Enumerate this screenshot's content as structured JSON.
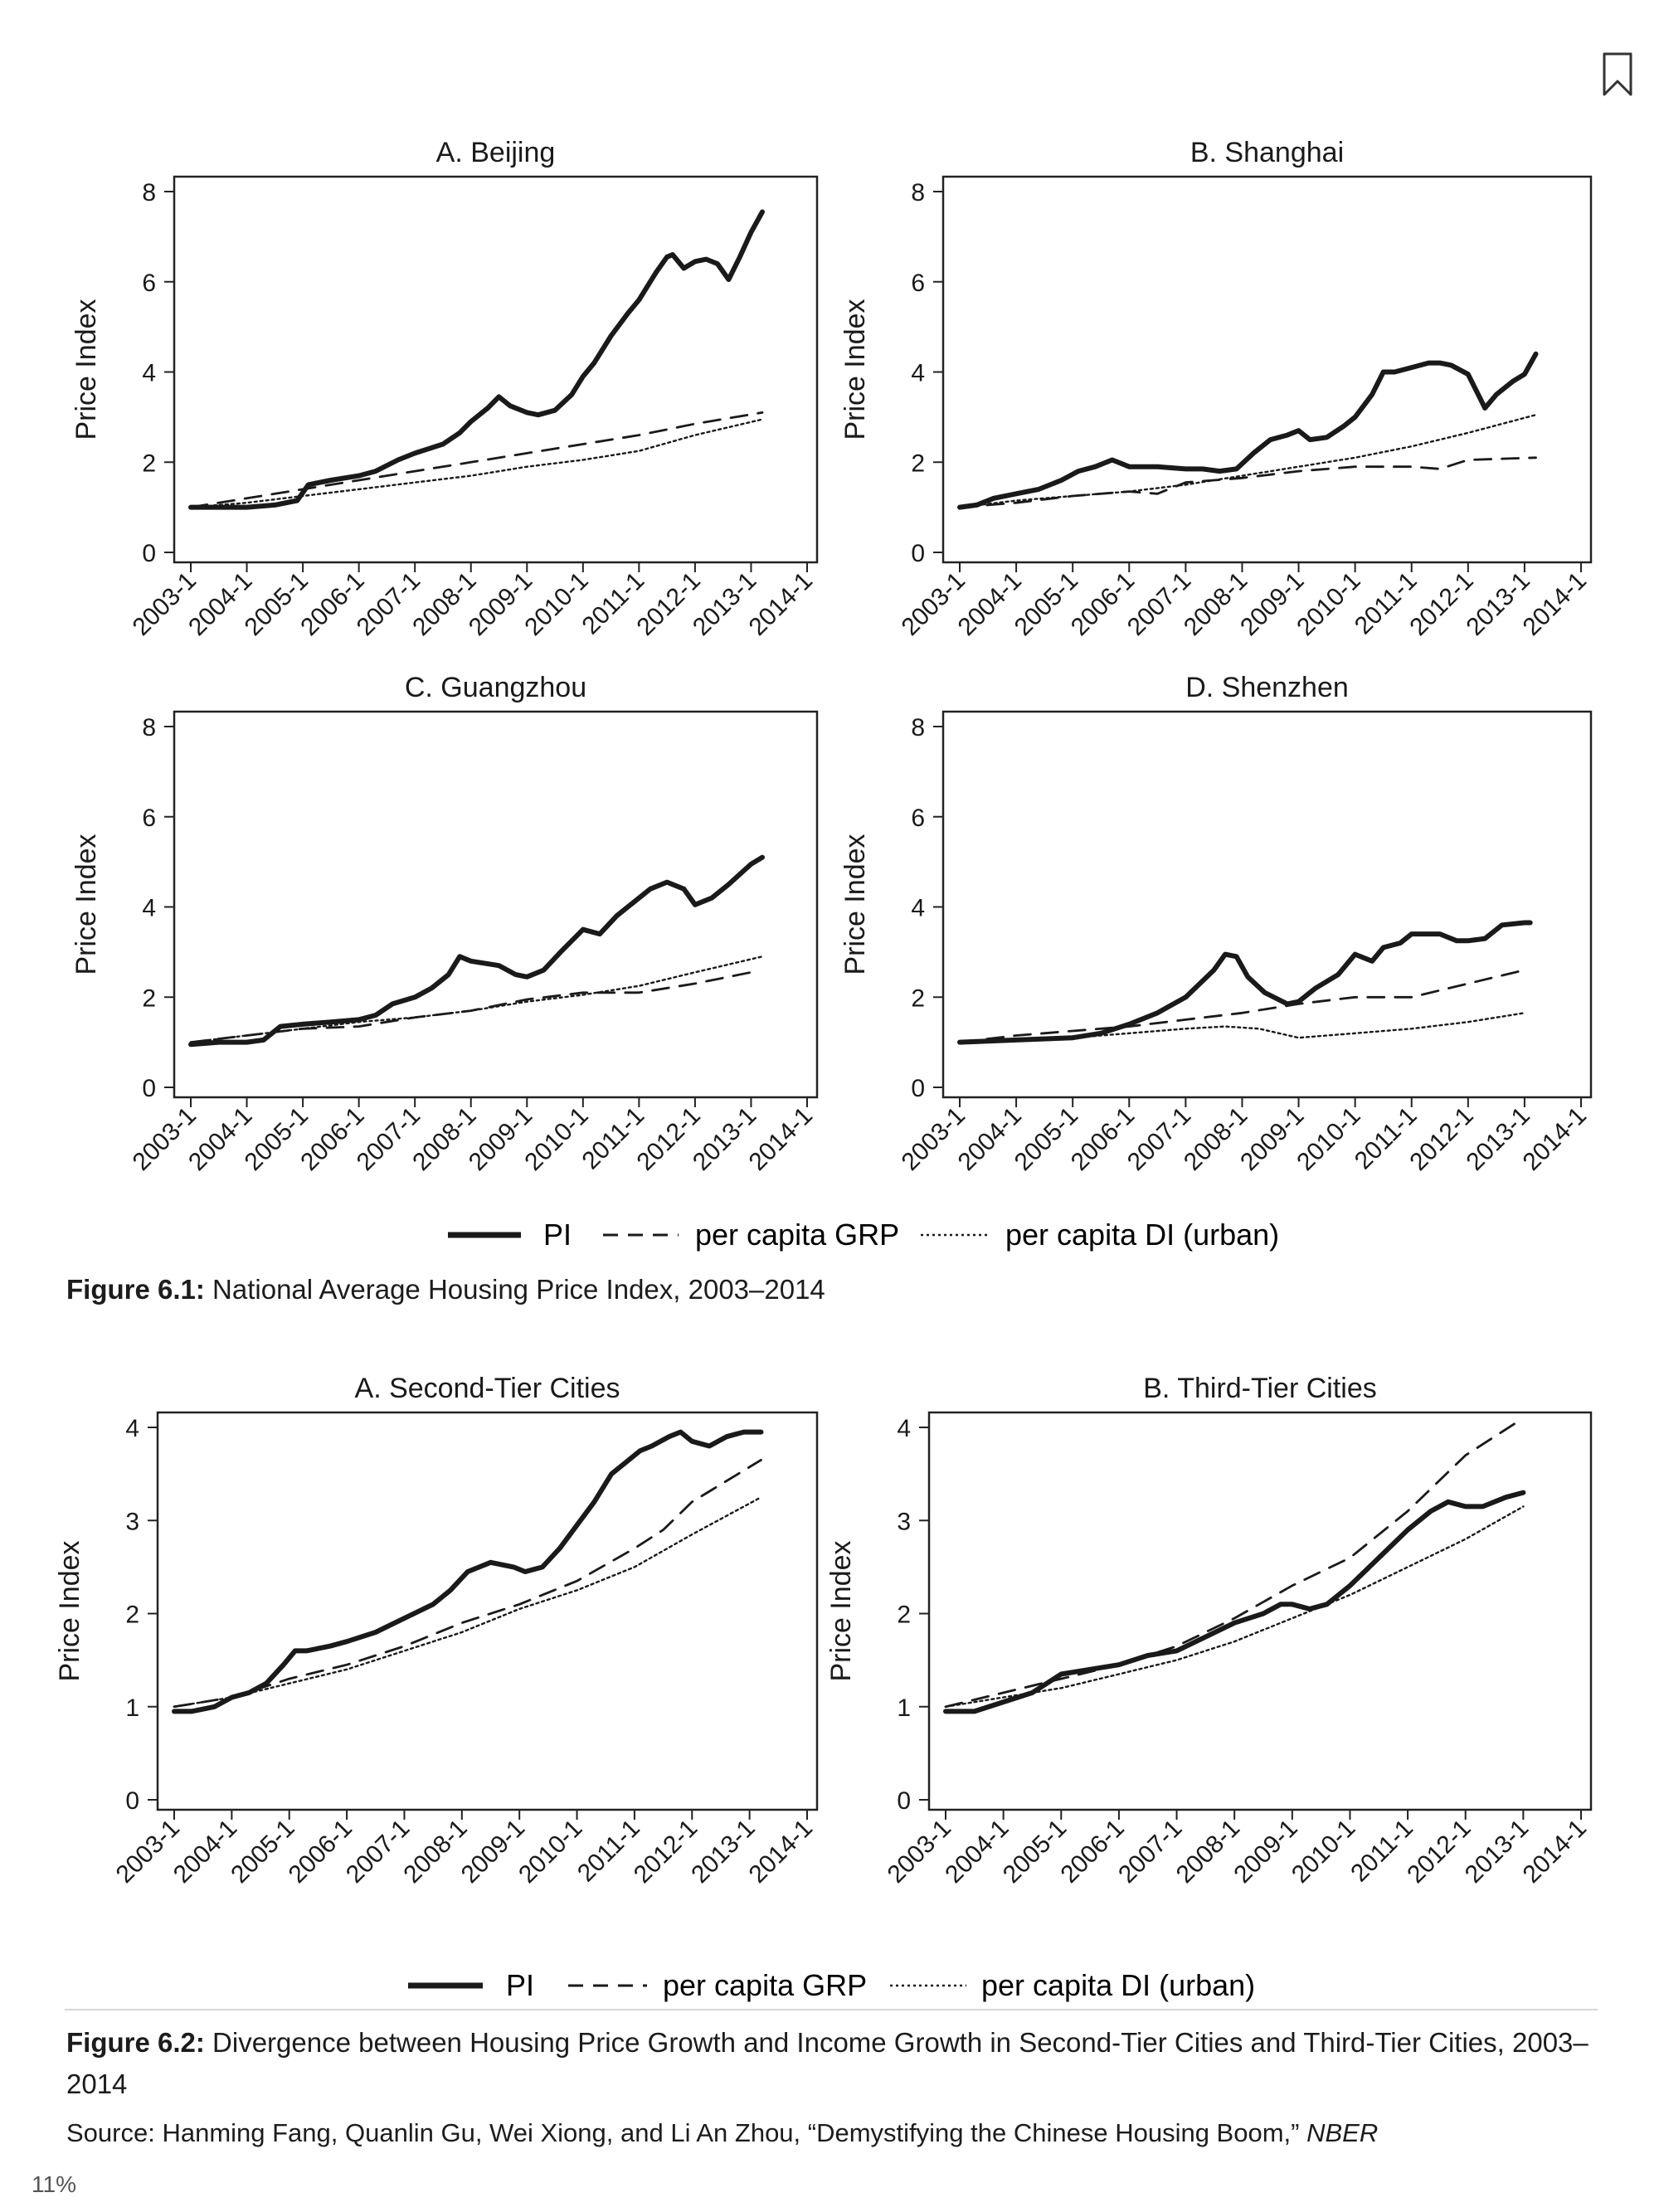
{
  "page": {
    "zoom_label": "11%"
  },
  "colors": {
    "ink": "#1a1a1a",
    "frame": "#222222",
    "bookmark": "#333333"
  },
  "icons": {
    "bookmark": "bookmark-icon"
  },
  "figure1": {
    "caption_label": "Figure 6.1:",
    "caption_text": " National Average Housing Price Index, 2003–2014",
    "legend": {
      "pi": "PI",
      "grp": "per capita GRP",
      "di": "per capita DI (urban)"
    }
  },
  "figure2": {
    "caption_label": "Figure 6.2:",
    "caption_text": " Divergence between Housing Price Growth and Income Growth in Second-Tier Cities and Third-Tier Cities, 2003–2014",
    "legend": {
      "pi": "PI",
      "grp": "per capita GRP",
      "di": "per capita DI (urban)"
    }
  },
  "source": {
    "text": "Source: Hanming Fang, Quanlin Gu, Wei Xiong, and Li An Zhou, “Demystifying the Chinese Housing Boom,” ",
    "publication": "NBER"
  },
  "chart_data": [
    {
      "id": "beijing",
      "type": "line",
      "title": "A. Beijing",
      "ylabel": "Price Index",
      "xlabel": "",
      "xticks": [
        "2003-1",
        "2004-1",
        "2005-1",
        "2006-1",
        "2007-1",
        "2008-1",
        "2009-1",
        "2010-1",
        "2011-1",
        "2012-1",
        "2013-1",
        "2014-1"
      ],
      "yticks": [
        0,
        2,
        4,
        6,
        8
      ],
      "ylim": [
        0,
        8
      ],
      "xlim": [
        2003,
        2014
      ],
      "grid": false,
      "series": [
        {
          "name": "PI",
          "style": "solid",
          "x": [
            2003.0,
            2003.5,
            2004.0,
            2004.5,
            2004.9,
            2005.1,
            2005.5,
            2006.0,
            2006.3,
            2006.7,
            2007.0,
            2007.5,
            2007.8,
            2008.0,
            2008.3,
            2008.5,
            2008.7,
            2009.0,
            2009.2,
            2009.5,
            2009.8,
            2010.0,
            2010.2,
            2010.5,
            2010.8,
            2011.0,
            2011.3,
            2011.5,
            2011.6,
            2011.8,
            2012.0,
            2012.2,
            2012.4,
            2012.6,
            2012.8,
            2013.0,
            2013.2
          ],
          "y": [
            1.0,
            1.0,
            1.0,
            1.05,
            1.15,
            1.5,
            1.6,
            1.7,
            1.8,
            2.05,
            2.2,
            2.4,
            2.65,
            2.9,
            3.2,
            3.45,
            3.25,
            3.1,
            3.05,
            3.15,
            3.5,
            3.9,
            4.2,
            4.8,
            5.3,
            5.6,
            6.2,
            6.55,
            6.6,
            6.3,
            6.45,
            6.5,
            6.4,
            6.05,
            6.55,
            7.1,
            7.55
          ]
        },
        {
          "name": "per capita GRP",
          "style": "dashed",
          "x": [
            2003.0,
            2004.0,
            2005.0,
            2006.0,
            2007.0,
            2008.0,
            2009.0,
            2010.0,
            2011.0,
            2012.0,
            2013.2
          ],
          "y": [
            1.0,
            1.2,
            1.4,
            1.6,
            1.8,
            2.0,
            2.2,
            2.4,
            2.6,
            2.85,
            3.1
          ]
        },
        {
          "name": "per capita DI (urban)",
          "style": "dotted",
          "x": [
            2003.0,
            2004.0,
            2005.0,
            2006.0,
            2007.0,
            2008.0,
            2009.0,
            2010.0,
            2011.0,
            2012.0,
            2013.2
          ],
          "y": [
            1.0,
            1.1,
            1.25,
            1.4,
            1.55,
            1.7,
            1.9,
            2.05,
            2.25,
            2.6,
            2.95
          ]
        }
      ]
    },
    {
      "id": "shanghai",
      "type": "line",
      "title": "B. Shanghai",
      "ylabel": "Price Index",
      "xlabel": "",
      "xticks": [
        "2003-1",
        "2004-1",
        "2005-1",
        "2006-1",
        "2007-1",
        "2008-1",
        "2009-1",
        "2010-1",
        "2011-1",
        "2012-1",
        "2013-1",
        "2014-1"
      ],
      "yticks": [
        0,
        2,
        4,
        6,
        8
      ],
      "ylim": [
        0,
        8
      ],
      "xlim": [
        2003,
        2014
      ],
      "grid": false,
      "series": [
        {
          "name": "PI",
          "style": "solid",
          "x": [
            2003.0,
            2003.3,
            2003.6,
            2004.0,
            2004.4,
            2004.8,
            2005.1,
            2005.4,
            2005.7,
            2006.0,
            2006.5,
            2007.0,
            2007.3,
            2007.6,
            2007.9,
            2008.2,
            2008.5,
            2008.8,
            2009.0,
            2009.2,
            2009.5,
            2009.8,
            2010.0,
            2010.3,
            2010.5,
            2010.7,
            2011.0,
            2011.3,
            2011.5,
            2011.7,
            2012.0,
            2012.1,
            2012.3,
            2012.5,
            2012.8,
            2013.0,
            2013.2
          ],
          "y": [
            1.0,
            1.05,
            1.2,
            1.3,
            1.4,
            1.6,
            1.8,
            1.9,
            2.05,
            1.9,
            1.9,
            1.85,
            1.85,
            1.8,
            1.85,
            2.2,
            2.5,
            2.6,
            2.7,
            2.5,
            2.55,
            2.8,
            3.0,
            3.5,
            4.0,
            4.0,
            4.1,
            4.2,
            4.2,
            4.15,
            3.95,
            3.7,
            3.2,
            3.5,
            3.8,
            3.95,
            4.4
          ]
        },
        {
          "name": "per capita GRP",
          "style": "dashed",
          "x": [
            2003.0,
            2003.5,
            2004.0,
            2005.0,
            2006.0,
            2006.5,
            2007.0,
            2007.5,
            2008.0,
            2009.0,
            2010.0,
            2011.0,
            2011.5,
            2012.0,
            2013.2
          ],
          "y": [
            1.0,
            1.05,
            1.1,
            1.25,
            1.35,
            1.3,
            1.55,
            1.6,
            1.65,
            1.8,
            1.9,
            1.9,
            1.85,
            2.05,
            2.1
          ]
        },
        {
          "name": "per capita DI (urban)",
          "style": "dotted",
          "x": [
            2003.0,
            2004.0,
            2005.0,
            2006.0,
            2007.0,
            2008.0,
            2009.0,
            2010.0,
            2011.0,
            2012.0,
            2013.2
          ],
          "y": [
            1.0,
            1.15,
            1.25,
            1.35,
            1.5,
            1.7,
            1.9,
            2.1,
            2.35,
            2.65,
            3.05
          ]
        }
      ]
    },
    {
      "id": "guangzhou",
      "type": "line",
      "title": "C. Guangzhou",
      "ylabel": "Price Index",
      "xlabel": "",
      "xticks": [
        "2003-1",
        "2004-1",
        "2005-1",
        "2006-1",
        "2007-1",
        "2008-1",
        "2009-1",
        "2010-1",
        "2011-1",
        "2012-1",
        "2013-1",
        "2014-1"
      ],
      "yticks": [
        0,
        2,
        4,
        6,
        8
      ],
      "ylim": [
        0,
        8
      ],
      "xlim": [
        2003,
        2014
      ],
      "grid": false,
      "series": [
        {
          "name": "PI",
          "style": "solid",
          "x": [
            2003.0,
            2003.5,
            2004.0,
            2004.3,
            2004.6,
            2005.0,
            2005.5,
            2006.0,
            2006.3,
            2006.6,
            2007.0,
            2007.3,
            2007.6,
            2007.8,
            2008.0,
            2008.5,
            2008.8,
            2009.0,
            2009.3,
            2009.6,
            2010.0,
            2010.3,
            2010.6,
            2010.9,
            2011.2,
            2011.5,
            2011.8,
            2012.0,
            2012.3,
            2012.6,
            2013.0,
            2013.2
          ],
          "y": [
            0.95,
            1.0,
            1.0,
            1.05,
            1.35,
            1.4,
            1.45,
            1.5,
            1.6,
            1.85,
            2.0,
            2.2,
            2.5,
            2.9,
            2.8,
            2.7,
            2.5,
            2.45,
            2.6,
            3.0,
            3.5,
            3.4,
            3.8,
            4.1,
            4.4,
            4.55,
            4.4,
            4.05,
            4.2,
            4.5,
            4.95,
            5.1
          ]
        },
        {
          "name": "per capita GRP",
          "style": "dashed",
          "x": [
            2003.0,
            2004.0,
            2005.0,
            2006.0,
            2007.0,
            2008.0,
            2009.0,
            2010.0,
            2011.0,
            2012.0,
            2013.0
          ],
          "y": [
            1.0,
            1.15,
            1.3,
            1.35,
            1.55,
            1.7,
            1.95,
            2.1,
            2.1,
            2.3,
            2.55
          ]
        },
        {
          "name": "per capita DI (urban)",
          "style": "dotted",
          "x": [
            2003.0,
            2004.0,
            2005.0,
            2006.0,
            2007.0,
            2008.0,
            2009.0,
            2010.0,
            2011.0,
            2012.0,
            2013.2
          ],
          "y": [
            1.0,
            1.15,
            1.3,
            1.45,
            1.55,
            1.7,
            1.9,
            2.05,
            2.25,
            2.55,
            2.9
          ]
        }
      ]
    },
    {
      "id": "shenzhen",
      "type": "line",
      "title": "D. Shenzhen",
      "ylabel": "Price Index",
      "xlabel": "",
      "xticks": [
        "2003-1",
        "2004-1",
        "2005-1",
        "2006-1",
        "2007-1",
        "2008-1",
        "2009-1",
        "2010-1",
        "2011-1",
        "2012-1",
        "2013-1",
        "2014-1"
      ],
      "yticks": [
        0,
        2,
        4,
        6,
        8
      ],
      "ylim": [
        0,
        8
      ],
      "xlim": [
        2003,
        2014
      ],
      "grid": false,
      "series": [
        {
          "name": "PI",
          "style": "solid",
          "x": [
            2003.0,
            2004.0,
            2005.0,
            2005.5,
            2006.0,
            2006.5,
            2007.0,
            2007.5,
            2007.7,
            2007.9,
            2008.1,
            2008.4,
            2008.8,
            2009.0,
            2009.3,
            2009.7,
            2010.0,
            2010.3,
            2010.5,
            2010.8,
            2011.0,
            2011.5,
            2011.8,
            2012.0,
            2012.3,
            2012.6,
            2013.0,
            2013.1
          ],
          "y": [
            1.0,
            1.05,
            1.1,
            1.2,
            1.4,
            1.65,
            2.0,
            2.6,
            2.95,
            2.9,
            2.45,
            2.1,
            1.85,
            1.9,
            2.2,
            2.5,
            2.95,
            2.8,
            3.1,
            3.2,
            3.4,
            3.4,
            3.25,
            3.25,
            3.3,
            3.6,
            3.65,
            3.65
          ]
        },
        {
          "name": "per capita GRP",
          "style": "dashed",
          "x": [
            2003.0,
            2004.0,
            2005.0,
            2006.0,
            2007.0,
            2008.0,
            2009.0,
            2010.0,
            2011.0,
            2012.0,
            2013.0
          ],
          "y": [
            1.0,
            1.15,
            1.25,
            1.35,
            1.5,
            1.65,
            1.85,
            2.0,
            2.0,
            2.3,
            2.6
          ]
        },
        {
          "name": "per capita DI (urban)",
          "style": "dotted",
          "x": [
            2003.0,
            2004.0,
            2005.0,
            2006.0,
            2007.0,
            2007.7,
            2008.3,
            2009.0,
            2010.0,
            2011.0,
            2012.0,
            2013.0
          ],
          "y": [
            1.0,
            1.05,
            1.1,
            1.2,
            1.3,
            1.35,
            1.3,
            1.1,
            1.2,
            1.3,
            1.45,
            1.65
          ]
        }
      ]
    },
    {
      "id": "second-tier",
      "type": "line",
      "title": "A. Second-Tier Cities",
      "ylabel": "Price Index",
      "xlabel": "",
      "xticks": [
        "2003-1",
        "2004-1",
        "2005-1",
        "2006-1",
        "2007-1",
        "2008-1",
        "2009-1",
        "2010-1",
        "2011-1",
        "2012-1",
        "2013-1",
        "2014-1"
      ],
      "yticks": [
        0,
        1,
        2,
        3,
        4
      ],
      "ylim": [
        0,
        4
      ],
      "xlim": [
        2003,
        2014
      ],
      "grid": false,
      "series": [
        {
          "name": "PI",
          "style": "solid",
          "x": [
            2003.0,
            2003.3,
            2003.7,
            2004.0,
            2004.3,
            2004.6,
            2004.9,
            2005.1,
            2005.3,
            2005.7,
            2006.0,
            2006.5,
            2007.0,
            2007.5,
            2007.8,
            2008.1,
            2008.5,
            2008.9,
            2009.1,
            2009.4,
            2009.7,
            2010.0,
            2010.3,
            2010.6,
            2010.9,
            2011.1,
            2011.3,
            2011.6,
            2011.8,
            2012.0,
            2012.3,
            2012.6,
            2012.9,
            2013.2
          ],
          "y": [
            0.95,
            0.95,
            1.0,
            1.1,
            1.15,
            1.25,
            1.45,
            1.6,
            1.6,
            1.65,
            1.7,
            1.8,
            1.95,
            2.1,
            2.25,
            2.45,
            2.55,
            2.5,
            2.45,
            2.5,
            2.7,
            2.95,
            3.2,
            3.5,
            3.65,
            3.75,
            3.8,
            3.9,
            3.95,
            3.85,
            3.8,
            3.9,
            3.95,
            3.95
          ]
        },
        {
          "name": "per capita GRP",
          "style": "dashed",
          "x": [
            2003.0,
            2004.0,
            2005.0,
            2006.0,
            2007.0,
            2008.0,
            2009.0,
            2010.0,
            2011.0,
            2011.5,
            2012.0,
            2013.2
          ],
          "y": [
            1.0,
            1.1,
            1.3,
            1.45,
            1.65,
            1.9,
            2.1,
            2.35,
            2.7,
            2.9,
            3.2,
            3.65
          ]
        },
        {
          "name": "per capita DI (urban)",
          "style": "dotted",
          "x": [
            2003.0,
            2004.0,
            2005.0,
            2006.0,
            2007.0,
            2008.0,
            2009.0,
            2010.0,
            2011.0,
            2012.0,
            2013.2
          ],
          "y": [
            1.0,
            1.1,
            1.25,
            1.4,
            1.6,
            1.8,
            2.05,
            2.25,
            2.5,
            2.85,
            3.25
          ]
        }
      ]
    },
    {
      "id": "third-tier",
      "type": "line",
      "title": "B. Third-Tier Cities",
      "ylabel": "Price Index",
      "xlabel": "",
      "xticks": [
        "2003-1",
        "2004-1",
        "2005-1",
        "2006-1",
        "2007-1",
        "2008-1",
        "2009-1",
        "2010-1",
        "2011-1",
        "2012-1",
        "2013-1",
        "2014-1"
      ],
      "yticks": [
        0,
        1,
        2,
        3,
        4
      ],
      "ylim": [
        0,
        4
      ],
      "xlim": [
        2003,
        2014
      ],
      "grid": false,
      "series": [
        {
          "name": "PI",
          "style": "solid",
          "x": [
            2003.0,
            2003.5,
            2004.0,
            2004.5,
            2005.0,
            2005.5,
            2006.0,
            2006.5,
            2007.0,
            2007.5,
            2008.0,
            2008.5,
            2008.8,
            2009.0,
            2009.3,
            2009.6,
            2010.0,
            2010.5,
            2011.0,
            2011.4,
            2011.7,
            2012.0,
            2012.3,
            2012.7,
            2013.0
          ],
          "y": [
            0.95,
            0.95,
            1.05,
            1.15,
            1.35,
            1.4,
            1.45,
            1.55,
            1.6,
            1.75,
            1.9,
            2.0,
            2.1,
            2.1,
            2.05,
            2.1,
            2.3,
            2.6,
            2.9,
            3.1,
            3.2,
            3.15,
            3.15,
            3.25,
            3.3
          ]
        },
        {
          "name": "per capita GRP",
          "style": "dashed",
          "x": [
            2003.0,
            2004.0,
            2005.0,
            2006.0,
            2007.0,
            2008.0,
            2009.0,
            2010.0,
            2011.0,
            2012.0,
            2013.0
          ],
          "y": [
            1.0,
            1.15,
            1.3,
            1.45,
            1.65,
            1.95,
            2.3,
            2.6,
            3.1,
            3.7,
            4.1
          ]
        },
        {
          "name": "per capita DI (urban)",
          "style": "dotted",
          "x": [
            2003.0,
            2004.0,
            2005.0,
            2006.0,
            2007.0,
            2008.0,
            2009.0,
            2010.0,
            2011.0,
            2012.0,
            2013.0
          ],
          "y": [
            1.0,
            1.1,
            1.2,
            1.35,
            1.5,
            1.7,
            1.95,
            2.2,
            2.5,
            2.8,
            3.15
          ]
        }
      ]
    }
  ]
}
